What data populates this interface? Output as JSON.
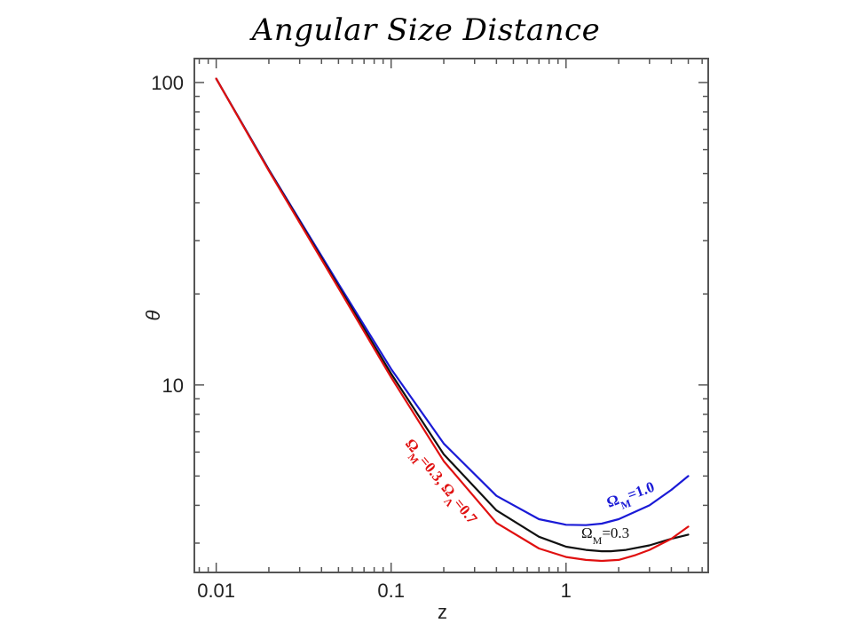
{
  "slide": {
    "title": "Angular Size Distance"
  },
  "chart_data": {
    "type": "line",
    "xlabel": "z",
    "ylabel": "θ",
    "x_scale": "log",
    "y_scale": "log",
    "xlim": [
      0.0075,
      6.5
    ],
    "ylim": [
      2.4,
      120
    ],
    "x_ticks": [
      {
        "value": 0.01,
        "label": "0.01"
      },
      {
        "value": 0.1,
        "label": "0.1"
      },
      {
        "value": 1,
        "label": "1"
      }
    ],
    "y_ticks": [
      {
        "value": 10,
        "label": "10"
      },
      {
        "value": 100,
        "label": "100"
      }
    ],
    "grid": false,
    "colors": {
      "frame": "#555555",
      "blue": "#1a1ad6",
      "black": "#111111",
      "red": "#e01010"
    },
    "series": [
      {
        "key": "blue",
        "name": "ΩM=1.0",
        "color": "#1a1ad6",
        "x": [
          0.01,
          0.02,
          0.05,
          0.1,
          0.2,
          0.4,
          0.7,
          1.0,
          1.3,
          1.6,
          2.0,
          3.0,
          4.0,
          5.0
        ],
        "y": [
          103,
          51.5,
          21.6,
          11.3,
          6.4,
          4.3,
          3.6,
          3.45,
          3.44,
          3.48,
          3.6,
          4.0,
          4.5,
          5.0
        ]
      },
      {
        "key": "black",
        "name": "ΩM=0.3",
        "color": "#111111",
        "x": [
          0.01,
          0.02,
          0.05,
          0.1,
          0.2,
          0.4,
          0.7,
          1.0,
          1.3,
          1.6,
          1.8,
          2.2,
          3.0,
          4.0,
          5.0
        ],
        "y": [
          103,
          51.3,
          21.2,
          10.9,
          5.9,
          3.85,
          3.15,
          2.92,
          2.85,
          2.82,
          2.82,
          2.85,
          2.95,
          3.1,
          3.2
        ]
      },
      {
        "key": "red",
        "name": "ΩM=0.3, ΩΛ=0.7",
        "color": "#e01010",
        "x": [
          0.01,
          0.02,
          0.05,
          0.1,
          0.2,
          0.4,
          0.7,
          1.0,
          1.3,
          1.6,
          2.0,
          2.5,
          3.0,
          4.0,
          5.0
        ],
        "y": [
          103,
          51.0,
          20.9,
          10.6,
          5.6,
          3.5,
          2.88,
          2.7,
          2.64,
          2.62,
          2.64,
          2.74,
          2.85,
          3.1,
          3.4
        ]
      }
    ],
    "annotations": [
      {
        "key": "blue",
        "base": "Ω",
        "sub": "M",
        "rest": "=1.0",
        "color": "#1a1ad6",
        "bold": true
      },
      {
        "key": "black",
        "base": "Ω",
        "sub": "M",
        "rest": "=0.3",
        "color": "#111111",
        "bold": false
      },
      {
        "key": "red",
        "base": "Ω",
        "sub": "M",
        "rest": "=0.3, ",
        "base2": "Ω",
        "sub2": "Λ",
        "rest2": "=0.7",
        "color": "#e01010",
        "bold": true
      }
    ]
  }
}
